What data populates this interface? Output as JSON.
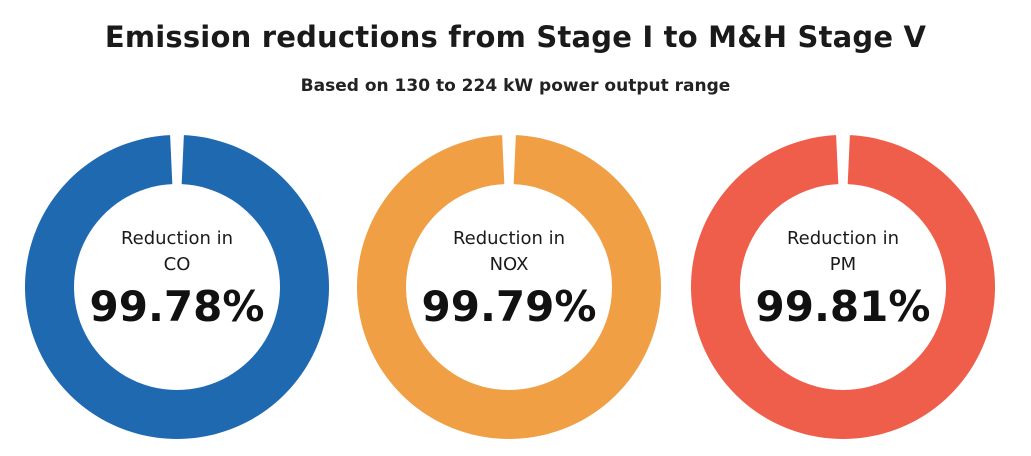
{
  "chart_data": {
    "type": "pie",
    "title": "Emission reductions from Stage I to M&H Stage V",
    "subtitle": "Based on 130 to 224 kW power output range",
    "series": [
      {
        "name": "CO",
        "label_line1": "Reduction in",
        "label_line2": "CO",
        "value": 99.78,
        "display": "99.78%",
        "color": "#1f69b0"
      },
      {
        "name": "NOX",
        "label_line1": "Reduction in",
        "label_line2": "NOX",
        "value": 99.79,
        "display": "99.79%",
        "color": "#f09f45"
      },
      {
        "name": "PM",
        "label_line1": "Reduction in",
        "label_line2": "PM",
        "value": 99.81,
        "display": "99.81%",
        "color": "#ee5e4a"
      }
    ]
  }
}
